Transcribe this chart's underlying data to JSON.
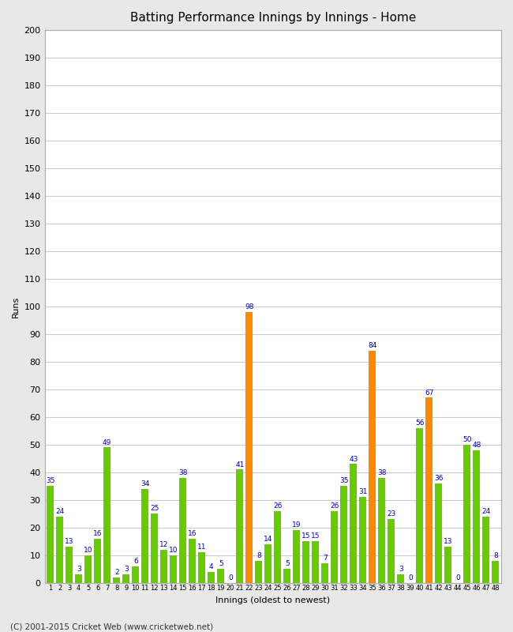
{
  "title": "Batting Performance Innings by Innings - Home",
  "xlabel": "Innings (oldest to newest)",
  "ylabel": "Runs",
  "ylim": [
    0,
    200
  ],
  "yticks": [
    0,
    10,
    20,
    30,
    40,
    50,
    60,
    70,
    80,
    90,
    100,
    110,
    120,
    130,
    140,
    150,
    160,
    170,
    180,
    190,
    200
  ],
  "innings": [
    1,
    2,
    3,
    4,
    5,
    6,
    7,
    8,
    9,
    10,
    11,
    12,
    13,
    14,
    15,
    16,
    17,
    18,
    19,
    20,
    21,
    22,
    23,
    24,
    25,
    26,
    27,
    28,
    29,
    30,
    31,
    32,
    33,
    34,
    35,
    36,
    37,
    38,
    39,
    40,
    41,
    42,
    43,
    44,
    45,
    46,
    47,
    48
  ],
  "values": [
    35,
    24,
    13,
    3,
    10,
    16,
    49,
    2,
    3,
    6,
    34,
    25,
    12,
    10,
    38,
    16,
    11,
    4,
    5,
    0,
    41,
    98,
    8,
    14,
    26,
    5,
    19,
    15,
    15,
    7,
    26,
    35,
    43,
    31,
    84,
    38,
    23,
    3,
    0,
    56,
    67,
    36,
    13,
    0,
    50,
    48,
    24,
    8
  ],
  "colors": [
    "#66cc00",
    "#66cc00",
    "#66cc00",
    "#66cc00",
    "#66cc00",
    "#66cc00",
    "#66cc00",
    "#66cc00",
    "#66cc00",
    "#66cc00",
    "#66cc00",
    "#66cc00",
    "#66cc00",
    "#66cc00",
    "#66cc00",
    "#66cc00",
    "#66cc00",
    "#66cc00",
    "#66cc00",
    "#66cc00",
    "#66cc00",
    "#ff8800",
    "#66cc00",
    "#66cc00",
    "#66cc00",
    "#66cc00",
    "#66cc00",
    "#66cc00",
    "#66cc00",
    "#66cc00",
    "#66cc00",
    "#66cc00",
    "#66cc00",
    "#66cc00",
    "#ff8800",
    "#66cc00",
    "#66cc00",
    "#66cc00",
    "#66cc00",
    "#66cc00",
    "#ff8800",
    "#66cc00",
    "#66cc00",
    "#66cc00",
    "#66cc00",
    "#66cc00",
    "#66cc00",
    "#66cc00"
  ],
  "label_color": "#0000cc",
  "bar_width": 0.75,
  "bg_color": "#e8e8e8",
  "plot_bg_color": "#ffffff",
  "grid_color": "#cccccc",
  "tick_label_color": "#000000",
  "footer": "(C) 2001-2015 Cricket Web (www.cricketweb.net)",
  "title_fontsize": 11,
  "label_fontsize": 6.5,
  "xlabel_fontsize": 8,
  "ylabel_fontsize": 8,
  "ytick_fontsize": 8,
  "xtick_fontsize": 6
}
